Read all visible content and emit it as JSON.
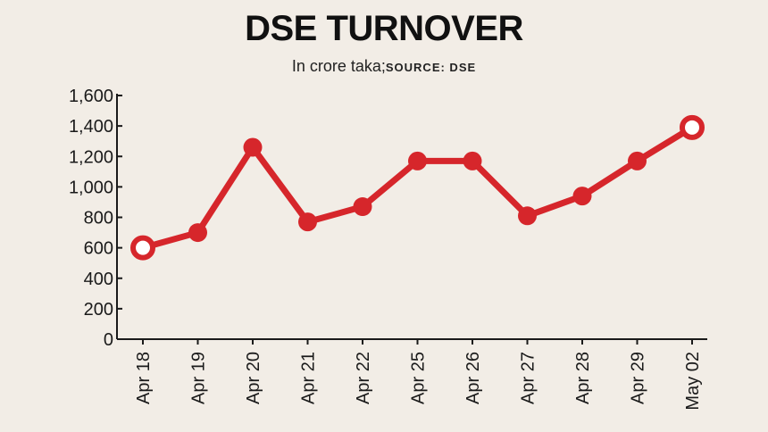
{
  "header": {
    "title": "DSE TURNOVER",
    "subtitle": "In crore taka;",
    "source": "SOURCE: DSE"
  },
  "colors": {
    "background": "#f2ede6",
    "line": "#d6262b",
    "axis": "#1a1a1a"
  },
  "chart_data": {
    "type": "line",
    "title": "DSE TURNOVER",
    "subtitle": "In crore taka; SOURCE: DSE",
    "xlabel": "",
    "ylabel": "",
    "ylim": [
      0,
      1600
    ],
    "yticks": [
      0,
      200,
      400,
      600,
      800,
      1000,
      1200,
      1400,
      1600
    ],
    "yticks_text": [
      "0",
      "200",
      "400",
      "600",
      "800",
      "1,000",
      "1,200",
      "1,400",
      "1,600"
    ],
    "grid": false,
    "categories": [
      "Apr 18",
      "Apr 19",
      "Apr 20",
      "Apr 21",
      "Apr 22",
      "Apr 25",
      "Apr 26",
      "Apr 27",
      "Apr 28",
      "Apr 29",
      "May 02"
    ],
    "values": [
      600,
      700,
      1260,
      770,
      870,
      1170,
      1170,
      810,
      940,
      1170,
      1390
    ],
    "highlight_points": [
      "Apr 18",
      "May 02"
    ]
  }
}
